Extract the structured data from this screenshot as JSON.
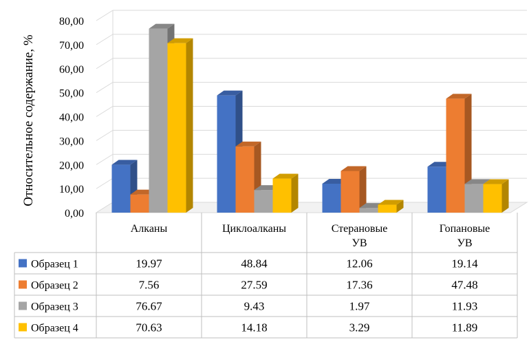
{
  "chart_data": {
    "type": "bar",
    "style": "3d-clustered-column-with-data-table",
    "ylabel": "Относительное содержание, %",
    "ylim": [
      0,
      80
    ],
    "yticks": [
      "0,00",
      "10,00",
      "20,00",
      "30,00",
      "40,00",
      "50,00",
      "60,00",
      "70,00",
      "80,00"
    ],
    "grid": true,
    "categories": [
      [
        "Алканы"
      ],
      [
        "Циклоалканы"
      ],
      [
        "Стерановые",
        "УВ"
      ],
      [
        "Гопановые",
        "УВ"
      ]
    ],
    "series": [
      {
        "name": "Образец 1",
        "values": [
          19.97,
          48.84,
          12.06,
          19.14
        ],
        "labels": [
          "19.97",
          "48.84",
          "12.06",
          "19.14"
        ],
        "color": "#4472C4"
      },
      {
        "name": "Образец 2",
        "values": [
          7.56,
          27.59,
          17.36,
          47.48
        ],
        "labels": [
          "7.56",
          "27.59",
          "17.36",
          "47.48"
        ],
        "color": "#ED7D31"
      },
      {
        "name": "Образец 3",
        "values": [
          76.67,
          9.43,
          1.97,
          11.93
        ],
        "labels": [
          "76.67",
          "9.43",
          "1.97",
          "11.93"
        ],
        "color": "#A5A5A5"
      },
      {
        "name": "Образец 4",
        "values": [
          70.63,
          14.18,
          3.29,
          11.89
        ],
        "labels": [
          "70.63",
          "14.18",
          "3.29",
          "11.89"
        ],
        "color": "#FFC000"
      }
    ]
  }
}
